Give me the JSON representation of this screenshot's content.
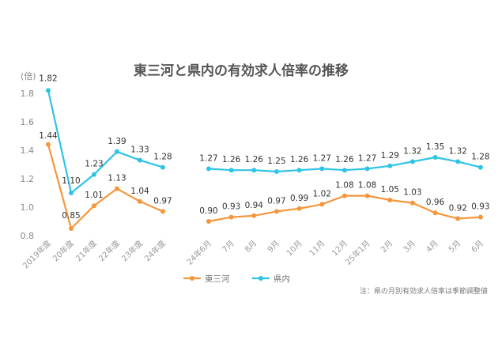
{
  "chart_data": {
    "type": "line",
    "title": "東三河と県内の有効求人倍率の推移",
    "ylabel": "(倍)",
    "ylim": [
      0.8,
      1.8
    ],
    "yticks": [
      "0.8",
      "1.0",
      "1.2",
      "1.4",
      "1.6",
      "1.8"
    ],
    "grid": false,
    "legend_position": "bottom-left",
    "segments": [
      {
        "categories": [
          "2019年度",
          "20年度",
          "21年度",
          "22年度",
          "23年度",
          "24年度"
        ],
        "series": [
          {
            "name": "東三河",
            "color": "#F5963C",
            "values": [
              1.44,
              0.85,
              1.01,
              1.13,
              1.04,
              0.97
            ],
            "labels": [
              "1.44",
              "0.85",
              "1.01",
              "1.13",
              "1.04",
              "0.97"
            ]
          },
          {
            "name": "県内",
            "color": "#2EC4E6",
            "values": [
              1.82,
              1.1,
              1.23,
              1.39,
              1.33,
              1.28
            ],
            "labels": [
              "1.82",
              "1.10",
              "1.23",
              "1.39",
              "1.33",
              "1.28"
            ]
          }
        ]
      },
      {
        "categories": [
          "24年6月",
          "7月",
          "8月",
          "9月",
          "10月",
          "11月",
          "12月",
          "25年1月",
          "2月",
          "3月",
          "4月",
          "5月",
          "6月"
        ],
        "series": [
          {
            "name": "東三河",
            "color": "#F5963C",
            "values": [
              0.9,
              0.93,
              0.94,
              0.97,
              0.99,
              1.02,
              1.08,
              1.08,
              1.05,
              1.03,
              0.96,
              0.92,
              0.93
            ],
            "labels": [
              "0.90",
              "0.93",
              "0.94",
              "0.97",
              "0.99",
              "1.02",
              "1.08",
              "1.08",
              "1.05",
              "1.03",
              "0.96",
              "0.92",
              "0.93"
            ]
          },
          {
            "name": "県内",
            "color": "#2EC4E6",
            "values": [
              1.27,
              1.26,
              1.26,
              1.25,
              1.26,
              1.27,
              1.26,
              1.27,
              1.29,
              1.32,
              1.35,
              1.32,
              1.28
            ],
            "labels": [
              "1.27",
              "1.26",
              "1.26",
              "1.25",
              "1.26",
              "1.27",
              "1.26",
              "1.27",
              "1.29",
              "1.32",
              "1.35",
              "1.32",
              "1.28"
            ]
          }
        ]
      }
    ],
    "legend": [
      {
        "name": "東三河",
        "color": "#F5963C"
      },
      {
        "name": "県内",
        "color": "#2EC4E6"
      }
    ],
    "note": "注：県の月別有効求人倍率は季節調整値"
  }
}
